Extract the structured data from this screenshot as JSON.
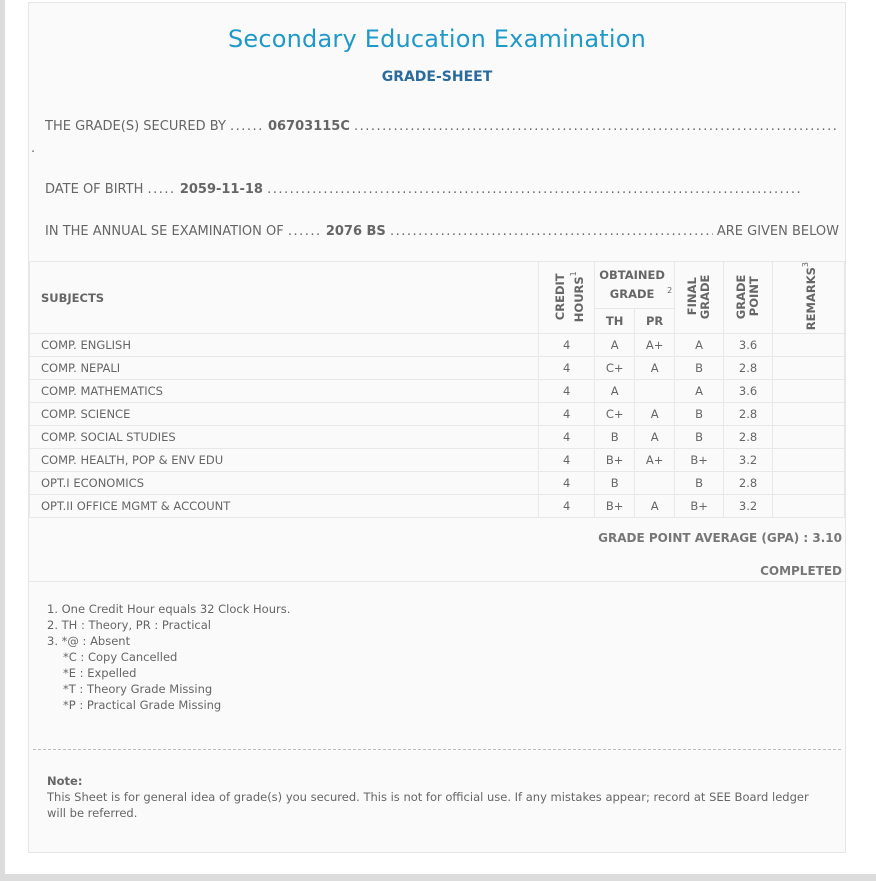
{
  "title": "Secondary Education Examination",
  "subtitle": "GRADE-SHEET",
  "info": {
    "secured_by_label": "THE GRADE(S) SECURED BY",
    "symbol_no": "06703115C",
    "dob_label": "DATE OF BIRTH",
    "dob": "2059-11-18",
    "exam_label": "IN THE ANNUAL SE EXAMINATION OF",
    "exam_year": "2076 BS",
    "given_below": "ARE GIVEN BELOW"
  },
  "table": {
    "headers": {
      "subjects": "SUBJECTS",
      "credit": "CREDIT HOURS",
      "credit_sup": "1",
      "obtained": "OBTAINED GRADE",
      "obtained_sup": "2",
      "th": "TH",
      "pr": "PR",
      "final": "FINAL GRADE",
      "gp": "GRADE POINT",
      "remarks": "REMARKS",
      "remarks_sup": "3"
    },
    "rows": [
      {
        "subject": "COMP. ENGLISH",
        "credit": "4",
        "th": "A",
        "pr": "A+",
        "final": "A",
        "gp": "3.6",
        "remarks": ""
      },
      {
        "subject": "COMP. NEPALI",
        "credit": "4",
        "th": "C+",
        "pr": "A",
        "final": "B",
        "gp": "2.8",
        "remarks": ""
      },
      {
        "subject": "COMP. MATHEMATICS",
        "credit": "4",
        "th": "A",
        "pr": "",
        "final": "A",
        "gp": "3.6",
        "remarks": ""
      },
      {
        "subject": "COMP. SCIENCE",
        "credit": "4",
        "th": "C+",
        "pr": "A",
        "final": "B",
        "gp": "2.8",
        "remarks": ""
      },
      {
        "subject": "COMP. SOCIAL STUDIES",
        "credit": "4",
        "th": "B",
        "pr": "A",
        "final": "B",
        "gp": "2.8",
        "remarks": ""
      },
      {
        "subject": "COMP. HEALTH, POP & ENV EDU",
        "credit": "4",
        "th": "B+",
        "pr": "A+",
        "final": "B+",
        "gp": "3.2",
        "remarks": ""
      },
      {
        "subject": "OPT.I ECONOMICS",
        "credit": "4",
        "th": "B",
        "pr": "",
        "final": "B",
        "gp": "2.8",
        "remarks": ""
      },
      {
        "subject": "OPT.II OFFICE MGMT & ACCOUNT",
        "credit": "4",
        "th": "B+",
        "pr": "A",
        "final": "B+",
        "gp": "3.2",
        "remarks": ""
      }
    ]
  },
  "gpa": "GRADE POINT AVERAGE (GPA) : 3.10",
  "status": "COMPLETED",
  "footnotes": [
    "1. One Credit Hour equals 32 Clock Hours.",
    "2. TH : Theory, PR : Practical",
    "3. *@ : Absent"
  ],
  "footnotes_sub": [
    "*C : Copy Cancelled",
    "*E : Expelled",
    "*T : Theory Grade Missing",
    "*P : Practical Grade Missing"
  ],
  "note": {
    "label": "Note:",
    "text": "This Sheet is for general idea of grade(s) you secured. This is not for official use. If any mistakes appear; record at SEE Board ledger will be referred."
  }
}
